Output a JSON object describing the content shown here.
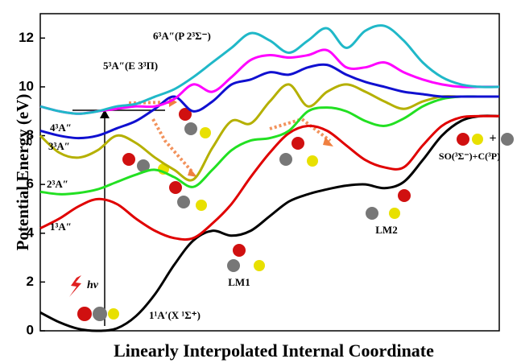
{
  "chart_data": {
    "type": "line",
    "ylabel": "Potential Energy (eV)",
    "xlabel": "Linearly Interpolated Internal Coordinate",
    "x": [
      0,
      1,
      2,
      3,
      4,
      5,
      6,
      7,
      8,
      9,
      10,
      11,
      12,
      13,
      14,
      15,
      16,
      17,
      18,
      19,
      20,
      21,
      22,
      23,
      24
    ],
    "xlim": [
      0,
      24
    ],
    "ylim": [
      0,
      13
    ],
    "yticks": [
      0,
      2,
      4,
      6,
      8,
      10,
      12
    ],
    "series": [
      {
        "name": "1¹A′(X ¹Σ⁺)",
        "color": "#000000",
        "values": [
          0.75,
          0.35,
          0.08,
          0.0,
          0.1,
          0.6,
          1.5,
          2.7,
          3.7,
          4.1,
          3.9,
          4.1,
          4.7,
          5.3,
          5.6,
          5.8,
          5.95,
          6.0,
          5.85,
          6.1,
          7.0,
          8.0,
          8.6,
          8.8,
          8.8
        ]
      },
      {
        "name": "1³A″",
        "color": "#e00000",
        "values": [
          4.2,
          4.6,
          5.1,
          5.4,
          5.2,
          4.6,
          4.1,
          3.8,
          3.8,
          4.4,
          5.2,
          6.3,
          7.3,
          8.1,
          8.4,
          8.2,
          7.6,
          7.0,
          6.7,
          6.7,
          7.6,
          8.4,
          8.75,
          8.8,
          8.8
        ]
      },
      {
        "name": "2³A″",
        "color": "#22e022",
        "values": [
          5.7,
          5.6,
          5.65,
          5.8,
          6.1,
          6.4,
          6.6,
          6.3,
          5.9,
          6.6,
          7.4,
          7.8,
          7.9,
          8.2,
          9.0,
          9.15,
          9.0,
          8.6,
          8.4,
          8.7,
          9.2,
          9.5,
          9.6,
          9.6,
          9.6
        ]
      },
      {
        "name": "3³A″",
        "color": "#b5b000",
        "values": [
          8.0,
          7.3,
          7.1,
          7.4,
          8.0,
          7.7,
          7.1,
          6.6,
          6.2,
          7.5,
          8.6,
          8.5,
          9.4,
          10.1,
          9.2,
          9.8,
          10.1,
          9.8,
          9.4,
          9.1,
          9.4,
          9.6,
          9.6,
          9.6,
          9.6
        ]
      },
      {
        "name": "4³A″",
        "color": "#1010d0",
        "values": [
          8.2,
          8.0,
          7.9,
          8.0,
          8.3,
          8.6,
          9.1,
          9.6,
          9.0,
          9.4,
          10.1,
          10.3,
          10.6,
          10.5,
          10.8,
          10.9,
          10.5,
          10.2,
          10.0,
          9.8,
          9.7,
          9.6,
          9.6,
          9.6,
          9.6
        ]
      },
      {
        "name": "5³A″(E 3³Π)",
        "color": "#ff00ff",
        "values": [
          9.2,
          9.0,
          8.9,
          9.0,
          9.1,
          9.2,
          9.2,
          9.5,
          10.1,
          9.8,
          10.4,
          11.1,
          11.3,
          11.2,
          11.3,
          11.5,
          10.8,
          10.8,
          11.0,
          10.6,
          10.3,
          10.1,
          10.0,
          10.0,
          10.0
        ]
      },
      {
        "name": "6³A″(P 2³Σ⁻)",
        "color": "#20b8c8",
        "values": [
          9.2,
          9.0,
          8.9,
          9.0,
          9.2,
          9.3,
          9.6,
          9.9,
          10.4,
          11.0,
          11.6,
          12.2,
          11.9,
          11.4,
          11.9,
          12.4,
          11.6,
          12.3,
          12.5,
          11.9,
          11.0,
          10.4,
          10.1,
          10.0,
          10.0
        ]
      }
    ],
    "annotations": [
      "LM1",
      "LM2",
      "SO(³Σ⁻)+C(³P)",
      "hv"
    ]
  }
}
